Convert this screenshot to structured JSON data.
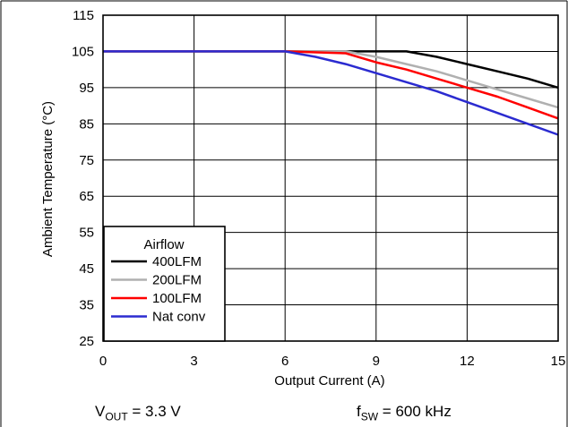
{
  "chart_data": {
    "type": "line",
    "xlabel": "Output Current (A)",
    "ylabel": "Ambient Temperature (°C)",
    "xlim": [
      0,
      15
    ],
    "ylim": [
      25,
      115
    ],
    "xticks": [
      0,
      3,
      6,
      9,
      12,
      15
    ],
    "yticks": [
      25,
      35,
      45,
      55,
      65,
      75,
      85,
      95,
      105,
      115
    ],
    "grid": true,
    "legend": {
      "title": "Airflow",
      "placement": "bottom-left"
    },
    "series": [
      {
        "name": "400LFM",
        "color": "#000000",
        "points": [
          [
            0,
            105
          ],
          [
            6,
            105
          ],
          [
            8,
            105
          ],
          [
            10,
            105
          ],
          [
            11,
            103.5
          ],
          [
            12,
            101.5
          ],
          [
            13,
            99.5
          ],
          [
            14,
            97.5
          ],
          [
            15,
            95
          ]
        ]
      },
      {
        "name": "200LFM",
        "color": "#b0b0b0",
        "points": [
          [
            0,
            105
          ],
          [
            6,
            105
          ],
          [
            8,
            105
          ],
          [
            9,
            103.5
          ],
          [
            10,
            101.5
          ],
          [
            11,
            99.5
          ],
          [
            12,
            97
          ],
          [
            13,
            94.5
          ],
          [
            14,
            92
          ],
          [
            15,
            89.5
          ]
        ]
      },
      {
        "name": "100LFM",
        "color": "#ff0000",
        "points": [
          [
            0,
            105
          ],
          [
            6,
            105
          ],
          [
            8,
            104.5
          ],
          [
            9,
            102
          ],
          [
            10,
            100
          ],
          [
            11,
            97.5
          ],
          [
            12,
            95
          ],
          [
            13,
            92.5
          ],
          [
            14,
            89.5
          ],
          [
            15,
            86.5
          ]
        ]
      },
      {
        "name": "Nat conv",
        "color": "#2b2bd0",
        "points": [
          [
            0,
            105
          ],
          [
            6,
            105
          ],
          [
            7,
            103.5
          ],
          [
            8,
            101.5
          ],
          [
            9,
            99
          ],
          [
            10,
            96.5
          ],
          [
            11,
            94
          ],
          [
            12,
            91
          ],
          [
            13,
            88
          ],
          [
            14,
            85
          ],
          [
            15,
            82
          ]
        ]
      }
    ]
  },
  "conditions": {
    "vout": {
      "symbol": "V",
      "sub": "OUT",
      "value": " = 3.3 V"
    },
    "fsw": {
      "symbol": "f",
      "sub": "SW",
      "value": " = 600 kHz"
    }
  }
}
